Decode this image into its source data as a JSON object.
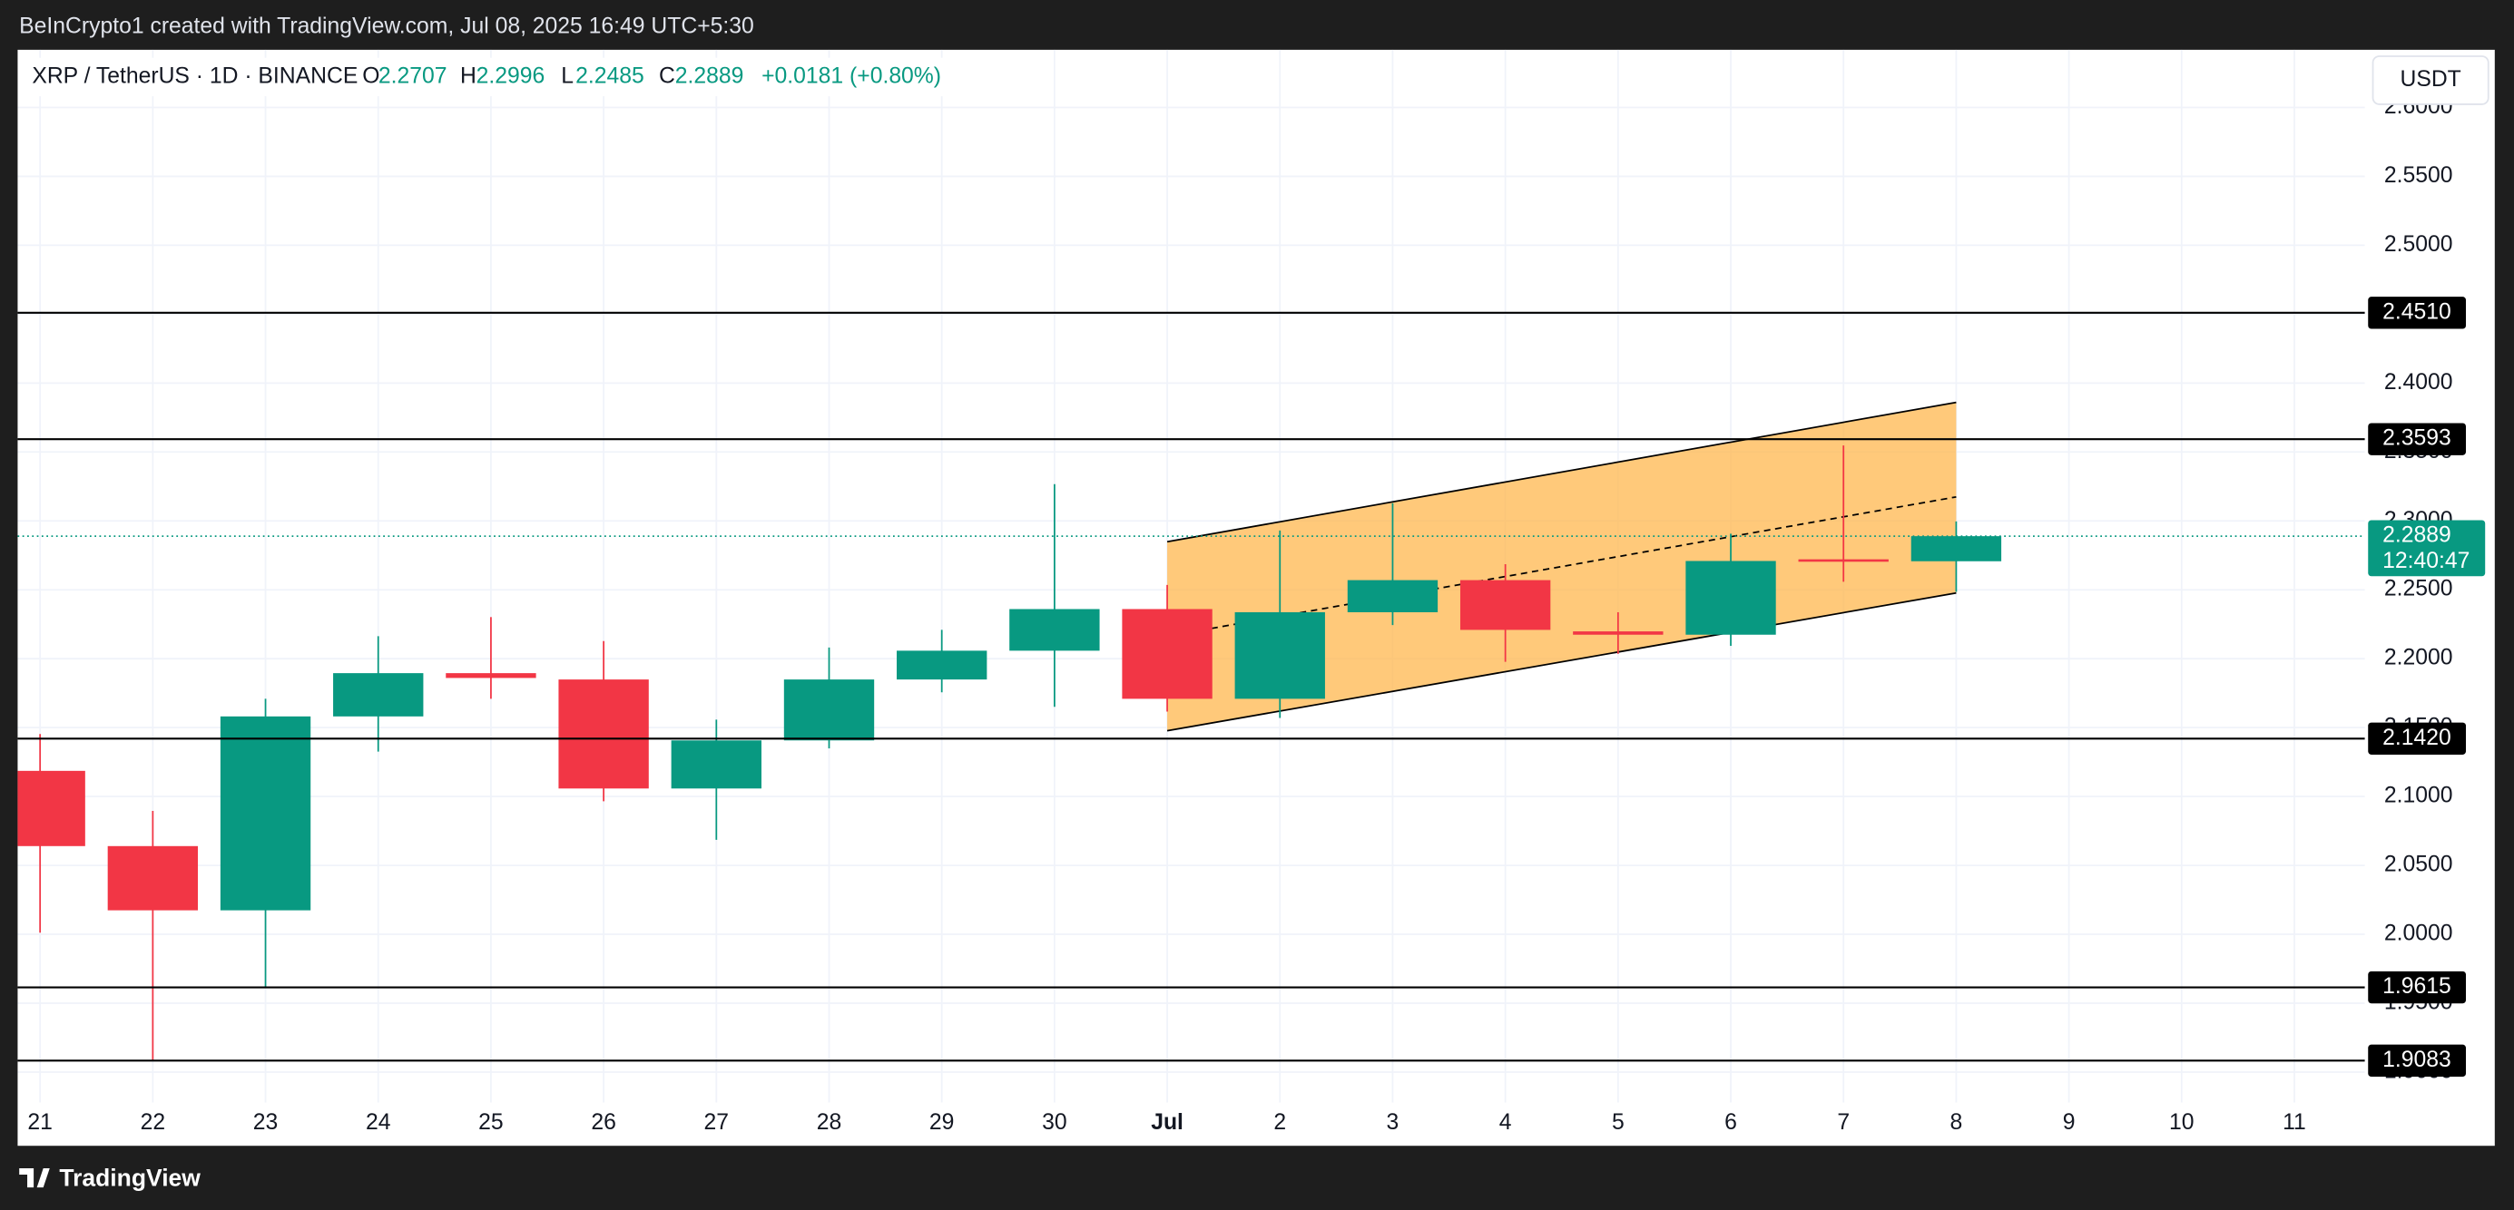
{
  "top_bar": "BeInCrypto1 created with TradingView.com, Jul 08, 2025 16:49 UTC+5:30",
  "header": {
    "symbol": "XRP / TetherUS · 1D · BINANCE",
    "o": "O",
    "h": "H",
    "l": "L",
    "c": "C",
    "change": "+0.0181 (+0.80%)"
  },
  "currency_button": "USDT",
  "footer": "TradingView",
  "chart_data": {
    "type": "candlestick",
    "categories": [
      "21",
      "22",
      "23",
      "24",
      "25",
      "26",
      "27",
      "28",
      "29",
      "30",
      "Jul",
      "2",
      "3",
      "4",
      "5",
      "6",
      "7",
      "8",
      "9",
      "10",
      "11"
    ],
    "open": [
      2.1186,
      2.064,
      2.0174,
      2.1581,
      2.1895,
      2.1849,
      2.1058,
      2.1407,
      2.1849,
      2.2058,
      2.236,
      2.1709,
      2.2337,
      2.257,
      2.2198,
      2.2174,
      2.2721,
      2.2707,
      null,
      null,
      null
    ],
    "high": [
      2.1453,
      2.0895,
      2.1709,
      2.2163,
      2.2302,
      2.2128,
      2.1558,
      2.2081,
      2.2209,
      2.3267,
      2.2535,
      2.293,
      2.3128,
      2.2686,
      2.2337,
      2.2907,
      2.3547,
      2.2996,
      null,
      null,
      null
    ],
    "low": [
      2.0012,
      1.9081,
      1.9616,
      2.1326,
      2.1709,
      2.0965,
      2.0686,
      2.1349,
      2.1756,
      2.1651,
      2.1616,
      2.157,
      2.2244,
      2.1977,
      2.2035,
      2.2093,
      2.2558,
      2.2485,
      null,
      null,
      null
    ],
    "close": [
      2.064,
      2.0174,
      2.1581,
      2.1895,
      2.186,
      2.1058,
      2.1407,
      2.1849,
      2.2058,
      2.236,
      2.1709,
      2.2337,
      2.257,
      2.2209,
      2.2174,
      2.2709,
      2.2707,
      2.2889,
      null,
      null,
      null
    ],
    "up_color": "#089981",
    "down_color": "#f23645",
    "ylim": [
      1.87791,
      2.64186
    ],
    "yticks": [
      {
        "value": 1.9,
        "label": "1.9000"
      },
      {
        "value": 1.95,
        "label": "1.9500"
      },
      {
        "value": 2.0,
        "label": "2.0000"
      },
      {
        "value": 2.05,
        "label": "2.0500"
      },
      {
        "value": 2.1,
        "label": "2.1000"
      },
      {
        "value": 2.15,
        "label": "2.1500"
      },
      {
        "value": 2.2,
        "label": "2.2000"
      },
      {
        "value": 2.25,
        "label": "2.2500"
      },
      {
        "value": 2.3,
        "label": "2.3000"
      },
      {
        "value": 2.35,
        "label": "2.3500"
      },
      {
        "value": 2.4,
        "label": "2.4000"
      },
      {
        "value": 2.45,
        "label": "2.4500"
      },
      {
        "value": 2.5,
        "label": "2.5000"
      },
      {
        "value": 2.55,
        "label": "2.5500"
      },
      {
        "value": 2.6,
        "label": "2.6000"
      }
    ],
    "grid": true,
    "levels": [
      {
        "value": 2.451,
        "label": "2.4510"
      },
      {
        "value": 2.3593,
        "label": "2.3593"
      },
      {
        "value": 2.142,
        "label": "2.1420"
      },
      {
        "value": 1.9615,
        "label": "1.9615"
      },
      {
        "value": 1.9083,
        "label": "1.9083"
      }
    ],
    "countdown": "12:40:47",
    "channel": {
      "from": "Jul",
      "to": "8",
      "upper": [
        2.2849,
        2.386
      ],
      "lower": [
        2.1477,
        2.2477
      ],
      "middle": [
        2.2163,
        2.3174
      ],
      "color": "#ffb74d"
    }
  }
}
